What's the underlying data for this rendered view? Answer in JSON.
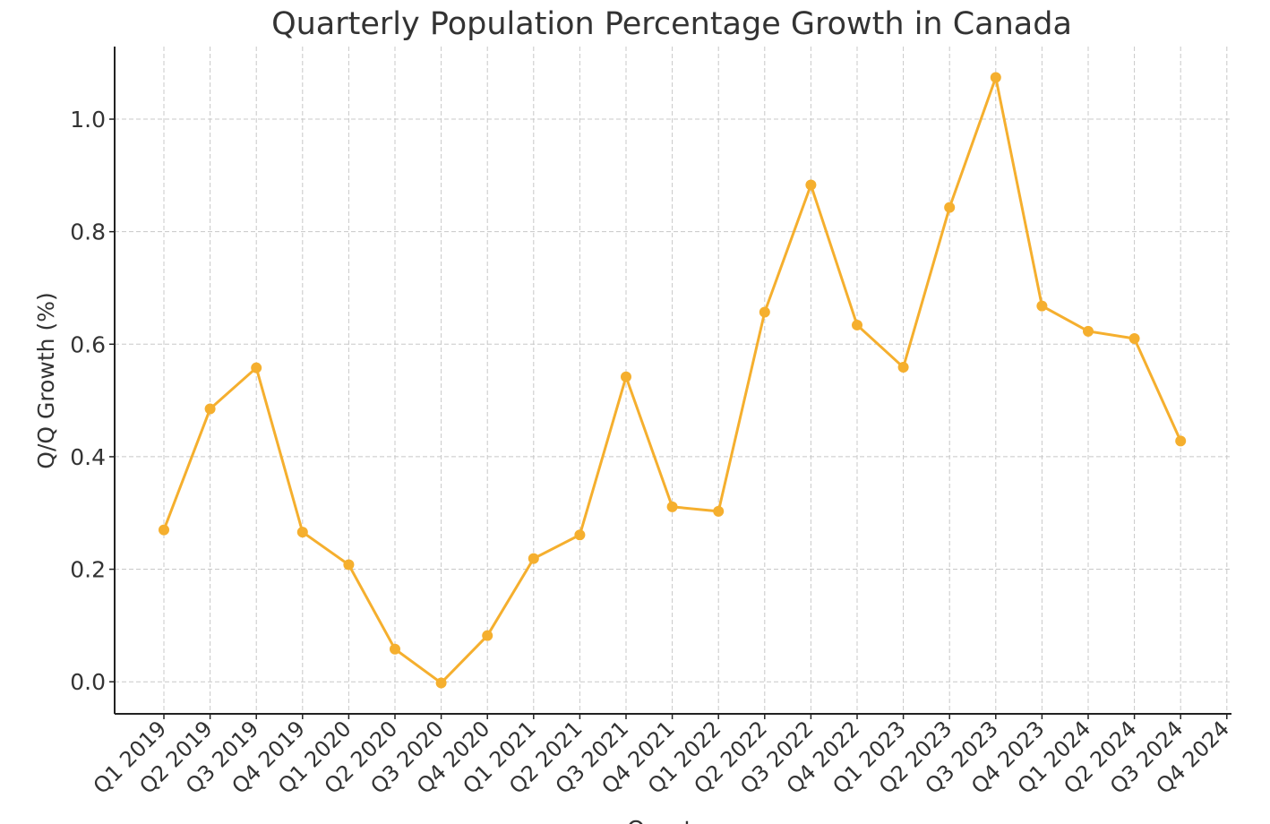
{
  "chart_data": {
    "type": "line",
    "title": "Quarterly Population Percentage Growth in Canada",
    "xlabel": "Quarter",
    "ylabel": "Q/Q Growth (%)",
    "categories": [
      "Q1 2019",
      "Q2 2019",
      "Q3 2019",
      "Q4 2019",
      "Q1 2020",
      "Q2 2020",
      "Q3 2020",
      "Q4 2020",
      "Q1 2021",
      "Q2 2021",
      "Q3 2021",
      "Q4 2021",
      "Q1 2022",
      "Q2 2022",
      "Q3 2022",
      "Q4 2022",
      "Q1 2023",
      "Q2 2023",
      "Q3 2023",
      "Q4 2023",
      "Q1 2024",
      "Q2 2024",
      "Q3 2024",
      "Q4 2024"
    ],
    "values": [
      0.27,
      0.485,
      0.558,
      0.266,
      0.208,
      0.058,
      -0.002,
      0.082,
      0.219,
      0.261,
      0.542,
      0.311,
      0.303,
      0.657,
      0.883,
      0.634,
      0.559,
      0.843,
      1.074,
      0.668,
      0.623,
      0.61,
      0.428,
      null
    ],
    "color": "#f5af2e",
    "ylim": [
      -0.057,
      1.129
    ],
    "yticks": [
      {
        "value": 0,
        "label": "0.0"
      },
      0.2,
      0.4,
      0.6,
      0.8,
      {
        "value": 1,
        "label": "1.0"
      }
    ],
    "grid": true
  }
}
